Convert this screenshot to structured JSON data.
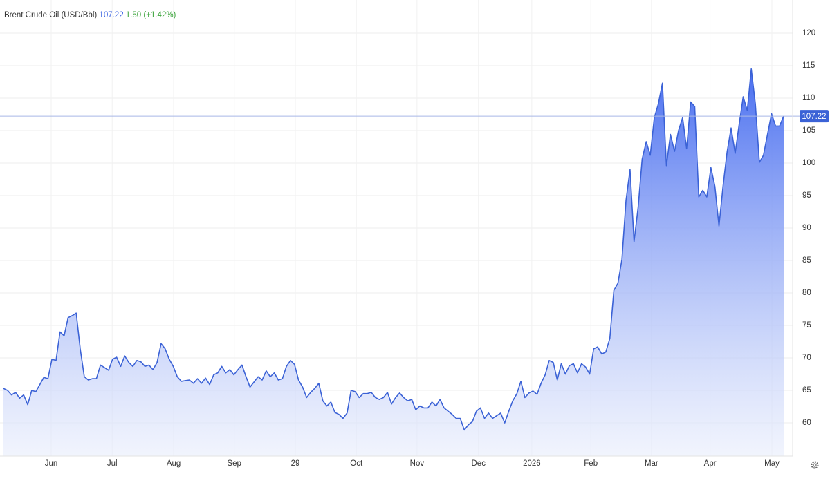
{
  "chart_data": {
    "type": "area",
    "title": "Brent Crude Oil (USD/Bbl)",
    "price_label": "107.22",
    "change_label": "1.50",
    "change_pct_label": "(+1.42%)",
    "color": "#3b62d6",
    "grid": true,
    "values": [
      65.3,
      65.0,
      64.3,
      64.7,
      63.8,
      64.3,
      62.8,
      65.0,
      64.8,
      65.9,
      67.0,
      66.8,
      69.8,
      69.6,
      74.0,
      73.4,
      76.2,
      76.5,
      76.9,
      71.4,
      67.1,
      66.6,
      66.8,
      66.8,
      68.9,
      68.5,
      68.1,
      69.8,
      70.1,
      68.7,
      70.3,
      69.3,
      68.7,
      69.6,
      69.4,
      68.7,
      68.9,
      68.2,
      69.3,
      72.2,
      71.4,
      69.8,
      68.7,
      67.1,
      66.4,
      66.5,
      66.6,
      66.1,
      66.8,
      66.1,
      66.9,
      65.9,
      67.4,
      67.7,
      68.7,
      67.7,
      68.2,
      67.4,
      68.2,
      68.9,
      67.1,
      65.5,
      66.3,
      67.1,
      66.6,
      68.0,
      67.1,
      67.7,
      66.6,
      66.8,
      68.7,
      69.6,
      69.0,
      66.6,
      65.5,
      63.9,
      64.7,
      65.3,
      66.1,
      63.4,
      62.6,
      63.2,
      61.6,
      61.3,
      60.7,
      61.5,
      65.0,
      64.8,
      63.9,
      64.5,
      64.5,
      64.7,
      63.9,
      63.6,
      63.9,
      64.7,
      62.9,
      63.9,
      64.6,
      63.9,
      63.4,
      63.6,
      62.0,
      62.6,
      62.3,
      62.3,
      63.2,
      62.6,
      63.6,
      62.3,
      61.8,
      61.3,
      60.7,
      60.7,
      58.9,
      59.7,
      60.2,
      61.8,
      62.3,
      60.7,
      61.5,
      60.7,
      61.1,
      61.5,
      60.0,
      61.8,
      63.4,
      64.5,
      66.4,
      63.9,
      64.6,
      64.9,
      64.4,
      66.1,
      67.4,
      69.6,
      69.3,
      66.6,
      69.1,
      67.5,
      68.8,
      69.1,
      67.7,
      69.1,
      68.6,
      67.5,
      71.4,
      71.7,
      70.6,
      70.9,
      73.0,
      80.4,
      81.5,
      85.2,
      94.3,
      99.0,
      87.9,
      93.2,
      100.6,
      103.3,
      101.2,
      107.0,
      109.1,
      112.3,
      99.6,
      104.4,
      101.8,
      105.0,
      107.0,
      102.2,
      109.4,
      108.7,
      94.8,
      95.8,
      94.8,
      99.3,
      96.4,
      90.3,
      96.4,
      101.7,
      105.4,
      101.5,
      106.0,
      110.2,
      108.1,
      114.5,
      109.1,
      100.1,
      101.2,
      104.4,
      107.6,
      105.7,
      105.7,
      107.22
    ],
    "xlim": [
      0,
      194.2
    ],
    "xticks": [
      {
        "value": 11.8,
        "label": "Jun"
      },
      {
        "value": 26.9,
        "label": "Jul"
      },
      {
        "value": 42.1,
        "label": "Aug"
      },
      {
        "value": 57.1,
        "label": "Sep"
      },
      {
        "value": 72.2,
        "label": "29"
      },
      {
        "value": 87.3,
        "label": "Oct"
      },
      {
        "value": 102.3,
        "label": "Nov"
      },
      {
        "value": 117.5,
        "label": "Dec"
      },
      {
        "value": 130.7,
        "label": "2026"
      },
      {
        "value": 145.3,
        "label": "Feb"
      },
      {
        "value": 160.3,
        "label": "Mar"
      },
      {
        "value": 174.8,
        "label": "Apr"
      },
      {
        "value": 190.1,
        "label": "May"
      }
    ],
    "ylim": [
      54.9,
      125.1
    ],
    "yticks": [
      60,
      65,
      70,
      75,
      80,
      85,
      90,
      95,
      100,
      105,
      110,
      115,
      120
    ]
  }
}
